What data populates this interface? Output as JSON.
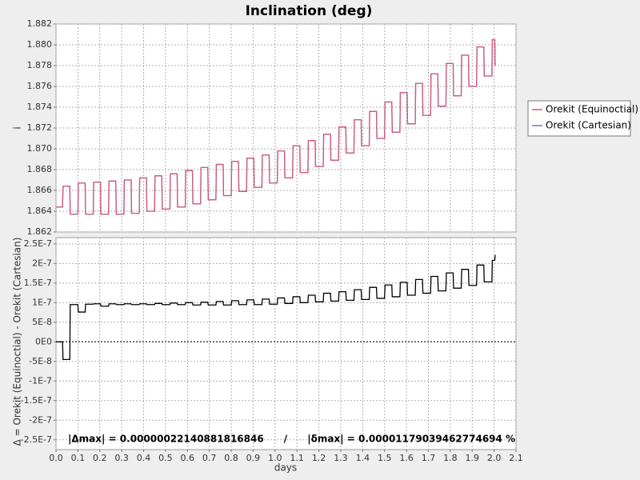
{
  "chart_data": [
    {
      "type": "line",
      "title": "Inclination (deg)",
      "ylabel": "i",
      "ylim": [
        1.862,
        1.882
      ],
      "yticks": [
        1.862,
        1.864,
        1.866,
        1.868,
        {
          "value": 1.87,
          "label": "1.870"
        },
        1.872,
        1.874,
        1.876,
        1.878,
        {
          "value": 1.88,
          "label": "1.880"
        },
        1.882
      ],
      "grid": true,
      "legend": "right",
      "x": [
        0,
        0.03,
        0.032,
        0.063,
        0.065,
        0.1,
        0.102,
        0.133,
        0.135,
        0.17,
        0.172,
        0.203,
        0.205,
        0.24,
        0.242,
        0.273,
        0.275,
        0.31,
        0.312,
        0.343,
        0.345,
        0.38,
        0.382,
        0.413,
        0.415,
        0.45,
        0.452,
        0.483,
        0.485,
        0.52,
        0.522,
        0.553,
        0.555,
        0.59,
        0.592,
        0.623,
        0.625,
        0.66,
        0.662,
        0.693,
        0.695,
        0.73,
        0.732,
        0.763,
        0.765,
        0.8,
        0.802,
        0.833,
        0.835,
        0.87,
        0.872,
        0.903,
        0.905,
        0.94,
        0.942,
        0.973,
        0.975,
        1.01,
        1.012,
        1.043,
        1.045,
        1.08,
        1.082,
        1.113,
        1.115,
        1.15,
        1.152,
        1.183,
        1.185,
        1.22,
        1.222,
        1.253,
        1.255,
        1.29,
        1.292,
        1.323,
        1.325,
        1.36,
        1.362,
        1.393,
        1.395,
        1.43,
        1.432,
        1.463,
        1.465,
        1.5,
        1.502,
        1.533,
        1.535,
        1.57,
        1.572,
        1.603,
        1.605,
        1.64,
        1.642,
        1.673,
        1.675,
        1.71,
        1.712,
        1.743,
        1.745,
        1.78,
        1.782,
        1.813,
        1.815,
        1.85,
        1.852,
        1.883,
        1.885,
        1.92,
        1.922,
        1.953,
        1.955,
        1.99,
        1.992,
        2.003,
        2.005
      ],
      "series": [
        {
          "name": "Orekit (Cartesian)",
          "color": "#8f6fd0",
          "values": [
            1.8644,
            1.8644,
            1.8664,
            1.8664,
            1.8637,
            1.8637,
            1.8667,
            1.8667,
            1.8637,
            1.8637,
            1.8668,
            1.8668,
            1.8637,
            1.8637,
            1.8669,
            1.8669,
            1.8637,
            1.8637,
            1.867,
            1.867,
            1.8638,
            1.8638,
            1.8672,
            1.8672,
            1.864,
            1.864,
            1.8674,
            1.8674,
            1.8642,
            1.8642,
            1.8676,
            1.8676,
            1.8644,
            1.8644,
            1.8679,
            1.8679,
            1.8647,
            1.8647,
            1.8682,
            1.8682,
            1.8651,
            1.8651,
            1.8685,
            1.8685,
            1.8655,
            1.8655,
            1.8688,
            1.8688,
            1.8659,
            1.8659,
            1.8691,
            1.8691,
            1.8663,
            1.8663,
            1.8694,
            1.8694,
            1.8667,
            1.8667,
            1.8698,
            1.8698,
            1.8672,
            1.8672,
            1.8703,
            1.8703,
            1.8677,
            1.8677,
            1.8708,
            1.8708,
            1.8683,
            1.8683,
            1.8714,
            1.8714,
            1.8689,
            1.8689,
            1.8721,
            1.8721,
            1.8696,
            1.8696,
            1.8728,
            1.8728,
            1.8703,
            1.8703,
            1.8736,
            1.8736,
            1.871,
            1.871,
            1.8745,
            1.8745,
            1.8716,
            1.8716,
            1.8754,
            1.8754,
            1.8724,
            1.8724,
            1.8763,
            1.8763,
            1.8732,
            1.8732,
            1.8772,
            1.8772,
            1.8741,
            1.8741,
            1.8782,
            1.8782,
            1.8751,
            1.8751,
            1.879,
            1.879,
            1.876,
            1.876,
            1.8798,
            1.8798,
            1.877,
            1.877,
            1.8805,
            1.8805,
            1.878
          ]
        },
        {
          "name": "Orekit (Equinoctial)",
          "color": "#d05a78",
          "values": [
            1.8644,
            1.8644,
            1.8664,
            1.8664,
            1.8637,
            1.8637,
            1.8667,
            1.8667,
            1.8637,
            1.8637,
            1.8668,
            1.8668,
            1.8637,
            1.8637,
            1.8669,
            1.8669,
            1.8637,
            1.8637,
            1.867,
            1.867,
            1.8638,
            1.8638,
            1.8672,
            1.8672,
            1.864,
            1.864,
            1.8674,
            1.8674,
            1.8642,
            1.8642,
            1.8676,
            1.8676,
            1.8644,
            1.8644,
            1.8679,
            1.8679,
            1.8647,
            1.8647,
            1.8682,
            1.8682,
            1.8651,
            1.8651,
            1.8685,
            1.8685,
            1.8655,
            1.8655,
            1.8688,
            1.8688,
            1.8659,
            1.8659,
            1.8691,
            1.8691,
            1.8663,
            1.8663,
            1.8694,
            1.8694,
            1.8667,
            1.8667,
            1.8698,
            1.8698,
            1.8672,
            1.8672,
            1.8703,
            1.8703,
            1.8677,
            1.8677,
            1.8708,
            1.8708,
            1.8683,
            1.8683,
            1.8714,
            1.8714,
            1.8689,
            1.8689,
            1.8721,
            1.8721,
            1.8696,
            1.8696,
            1.8728,
            1.8728,
            1.8703,
            1.8703,
            1.8736,
            1.8736,
            1.871,
            1.871,
            1.8745,
            1.8745,
            1.8716,
            1.8716,
            1.8754,
            1.8754,
            1.8724,
            1.8724,
            1.8763,
            1.8763,
            1.8732,
            1.8732,
            1.8772,
            1.8772,
            1.8741,
            1.8741,
            1.8782,
            1.8782,
            1.8751,
            1.8751,
            1.879,
            1.879,
            1.876,
            1.876,
            1.8798,
            1.8798,
            1.877,
            1.877,
            1.8805,
            1.8805,
            1.878
          ]
        }
      ]
    },
    {
      "type": "line",
      "ylabel": "Δ = Orekit (Equinoctial) - Orekit (Cartesian)",
      "xlabel": "days",
      "annotation": "|Δmax| = 0.00000022140881816846      /      |δmax| = 0.00001179039462774694 %",
      "xlim": [
        0,
        2.1
      ],
      "xticks": [
        {
          "value": 0,
          "label": "0.0"
        },
        0.1,
        0.2,
        0.3,
        0.4,
        0.5,
        0.6,
        0.7,
        0.8,
        0.9,
        {
          "value": 1,
          "label": "1.0"
        },
        1.1,
        1.2,
        1.3,
        1.4,
        1.5,
        1.6,
        1.7,
        1.8,
        1.9,
        {
          "value": 2,
          "label": "2.0"
        },
        2.1
      ],
      "ylim": [
        -2.75e-07,
        2.66e-07
      ],
      "yticks": [
        {
          "value": 2.5e-07,
          "label": "2.5E-7"
        },
        {
          "value": 2e-07,
          "label": "2E-7"
        },
        {
          "value": 1.5e-07,
          "label": "1.5E-7"
        },
        {
          "value": 1e-07,
          "label": "1E-7"
        },
        {
          "value": 5e-08,
          "label": "5E-8"
        },
        {
          "value": 0,
          "label": "0E0"
        },
        {
          "value": -5e-08,
          "label": "-5E-8"
        },
        {
          "value": -1e-07,
          "label": "-1E-7"
        },
        {
          "value": -1.5e-07,
          "label": "-1.5E-7"
        },
        {
          "value": -2e-07,
          "label": "-2E-7"
        },
        {
          "value": -2.5e-07,
          "label": "-2.5E-7"
        }
      ],
      "grid": true,
      "color": "#000000",
      "x": [
        0,
        0.03,
        0.032,
        0.063,
        0.065,
        0.1,
        0.102,
        0.133,
        0.135,
        0.17,
        0.172,
        0.203,
        0.205,
        0.24,
        0.242,
        0.273,
        0.275,
        0.31,
        0.312,
        0.343,
        0.345,
        0.38,
        0.382,
        0.413,
        0.415,
        0.45,
        0.452,
        0.483,
        0.485,
        0.52,
        0.522,
        0.553,
        0.555,
        0.59,
        0.592,
        0.623,
        0.625,
        0.66,
        0.662,
        0.693,
        0.695,
        0.73,
        0.732,
        0.763,
        0.765,
        0.8,
        0.802,
        0.833,
        0.835,
        0.87,
        0.872,
        0.903,
        0.905,
        0.94,
        0.942,
        0.973,
        0.975,
        1.01,
        1.012,
        1.043,
        1.045,
        1.08,
        1.082,
        1.113,
        1.115,
        1.15,
        1.152,
        1.183,
        1.185,
        1.22,
        1.222,
        1.253,
        1.255,
        1.29,
        1.292,
        1.323,
        1.325,
        1.36,
        1.362,
        1.393,
        1.395,
        1.43,
        1.432,
        1.463,
        1.465,
        1.5,
        1.502,
        1.533,
        1.535,
        1.57,
        1.572,
        1.603,
        1.605,
        1.64,
        1.642,
        1.673,
        1.675,
        1.71,
        1.712,
        1.743,
        1.745,
        1.78,
        1.782,
        1.813,
        1.815,
        1.85,
        1.852,
        1.883,
        1.885,
        1.92,
        1.922,
        1.953,
        1.955,
        1.99,
        1.992,
        2.003,
        2.005
      ],
      "values": [
        0,
        0,
        -4.5e-08,
        -4.5e-08,
        9.5e-08,
        9.5e-08,
        7.6e-08,
        7.6e-08,
        9.6e-08,
        9.6e-08,
        9.7e-08,
        9.7e-08,
        9.1e-08,
        9.1e-08,
        9.7e-08,
        9.7e-08,
        9.5e-08,
        9.5e-08,
        9.7e-08,
        9.7e-08,
        9.5e-08,
        9.5e-08,
        9.7e-08,
        9.7e-08,
        9.5e-08,
        9.5e-08,
        9.8e-08,
        9.8e-08,
        9.5e-08,
        9.5e-08,
        9.9e-08,
        9.9e-08,
        9.5e-08,
        9.5e-08,
        1e-07,
        1e-07,
        9.4e-08,
        9.4e-08,
        1.01e-07,
        1.01e-07,
        9.4e-08,
        9.4e-08,
        1.03e-07,
        1.03e-07,
        9.4e-08,
        9.4e-08,
        1.05e-07,
        1.05e-07,
        9.5e-08,
        9.5e-08,
        1.07e-07,
        1.07e-07,
        9.5e-08,
        9.5e-08,
        1.09e-07,
        1.09e-07,
        9.6e-08,
        9.6e-08,
        1.12e-07,
        1.12e-07,
        9.8e-08,
        9.8e-08,
        1.15e-07,
        1.15e-07,
        1e-07,
        1e-07,
        1.19e-07,
        1.19e-07,
        1.02e-07,
        1.02e-07,
        1.24e-07,
        1.24e-07,
        1.04e-07,
        1.04e-07,
        1.28e-07,
        1.28e-07,
        1.06e-07,
        1.06e-07,
        1.33e-07,
        1.33e-07,
        1.08e-07,
        1.08e-07,
        1.39e-07,
        1.39e-07,
        1.11e-07,
        1.11e-07,
        1.45e-07,
        1.45e-07,
        1.15e-07,
        1.15e-07,
        1.52e-07,
        1.52e-07,
        1.19e-07,
        1.19e-07,
        1.59e-07,
        1.59e-07,
        1.24e-07,
        1.24e-07,
        1.67e-07,
        1.67e-07,
        1.3e-07,
        1.3e-07,
        1.76e-07,
        1.76e-07,
        1.37e-07,
        1.37e-07,
        1.85e-07,
        1.85e-07,
        1.44e-07,
        1.44e-07,
        1.96e-07,
        1.96e-07,
        1.53e-07,
        1.53e-07,
        2.08e-07,
        2.08e-07,
        2.22e-07
      ]
    }
  ]
}
